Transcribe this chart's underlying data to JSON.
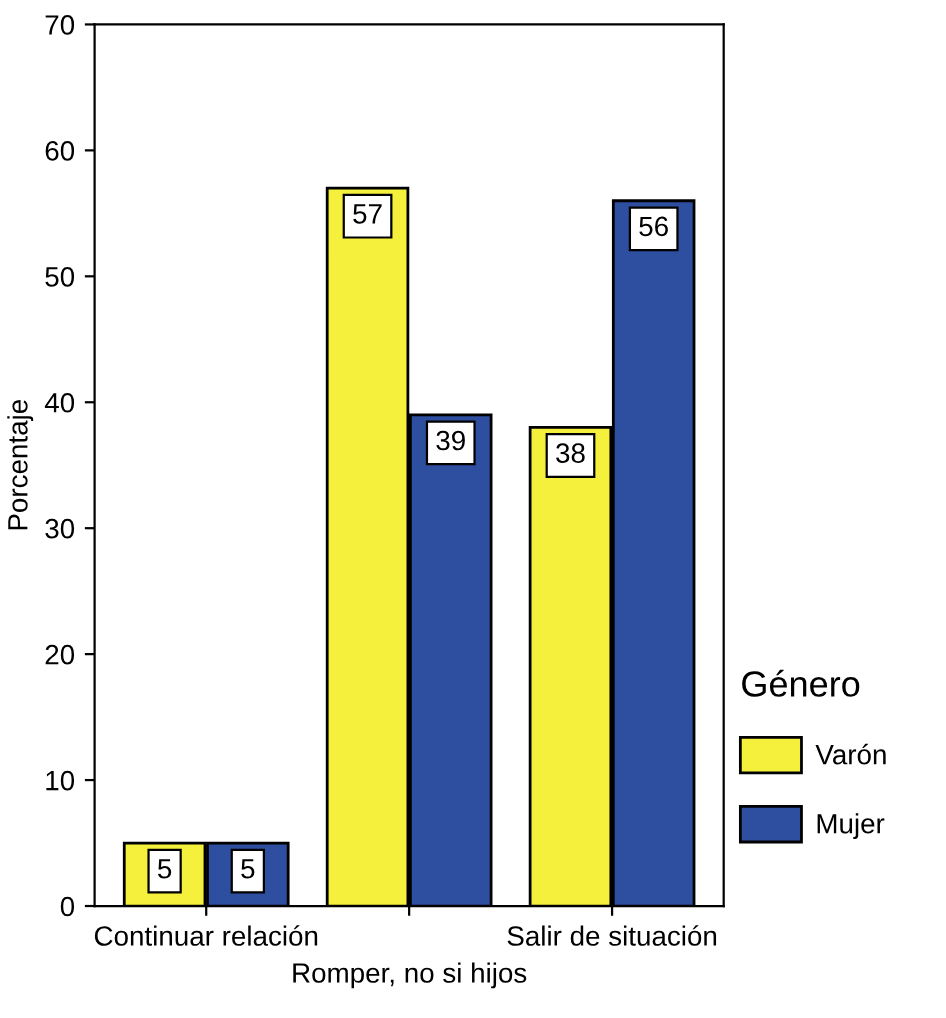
{
  "chart_data": {
    "type": "bar",
    "xlabel": "Romper, no si hijos",
    "ylabel": "Porcentaje",
    "categories": [
      "Continuar relación",
      null,
      "Salir de situación"
    ],
    "series": [
      {
        "name": "Varón",
        "color": "#f5f03c",
        "values": [
          5,
          57,
          38
        ]
      },
      {
        "name": "Mujer",
        "color": "#2e4fa0",
        "values": [
          5,
          39,
          56
        ]
      }
    ],
    "ylim": [
      0,
      70
    ],
    "yticks": [
      0,
      10,
      20,
      30,
      40,
      50,
      60,
      70
    ],
    "legend": "right",
    "legend_title": "Género",
    "grid": false,
    "data_labels": true
  }
}
